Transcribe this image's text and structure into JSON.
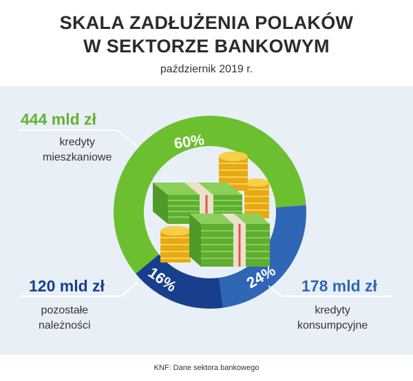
{
  "header": {
    "title_line1": "SKALA ZADŁUŻENIA POLAKÓW",
    "title_line2": "W SEKTORZE BANKOWYM",
    "subtitle": "październik 2019 r."
  },
  "chart_data": {
    "type": "pie",
    "style": "donut",
    "categories": [
      "kredyty mieszkaniowe",
      "kredyty konsumpcyjne",
      "pozostałe należności"
    ],
    "values": [
      444,
      178,
      120
    ],
    "unit": "mld zł",
    "percentages": [
      "60%",
      "24%",
      "16%"
    ],
    "value_labels": [
      "444 mld zł",
      "178 mld zł",
      "120 mld zł"
    ],
    "label_lines": [
      [
        "kredyty",
        "mieszkaniowe"
      ],
      [
        "kredyty",
        "konsumpcyjne"
      ],
      [
        "pozostałe",
        "należności"
      ]
    ],
    "colors": [
      "#6cc02f",
      "#2f66b6",
      "#183f8c"
    ],
    "center_image": "money-stack-and-coins"
  },
  "footer": {
    "source": "KNF: Dane sektora bankowego"
  }
}
